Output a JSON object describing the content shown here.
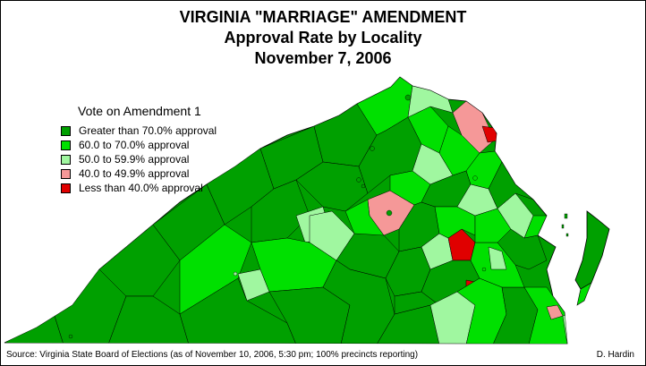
{
  "title": {
    "line1": "VIRGINIA \"MARRIAGE\" AMENDMENT",
    "line2": "Approval Rate by Locality",
    "line3": "November 7, 2006"
  },
  "legend": {
    "title": "Vote on Amendment 1",
    "items": [
      {
        "label": "Greater than 70.0% approval",
        "color": "#00a000"
      },
      {
        "label": "60.0 to 70.0% approval",
        "color": "#00e000"
      },
      {
        "label": "50.0 to 59.9% approval",
        "color": "#a0f7a0"
      },
      {
        "label": "40.0 to 49.9% approval",
        "color": "#f59898"
      },
      {
        "label": "Less than 40.0% approval",
        "color": "#e00000"
      }
    ]
  },
  "source": "Source: Virginia State Board of Elections (as of November 10, 2006, 5:30 pm; 100% precincts reporting)",
  "author": "D. Hardin"
}
